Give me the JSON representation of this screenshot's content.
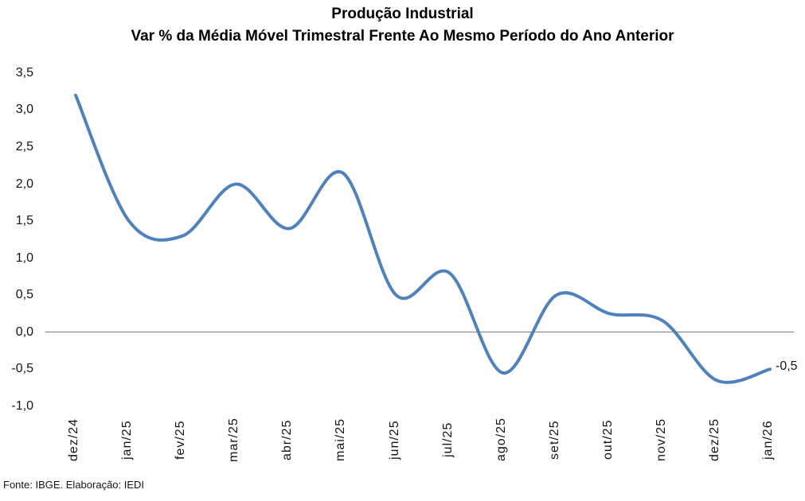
{
  "title": {
    "line1": "Produção Industrial",
    "line2": "Var % da Média Móvel Trimestral Frente Ao Mesmo Período do Ano Anterior"
  },
  "footer": {
    "source": "Fonte: IBGE. Elaboração: IEDI"
  },
  "chart_data": {
    "type": "line",
    "title": "Produção Industrial",
    "subtitle": "Var % da Média Móvel Trimestral Frente Ao Mesmo Período do Ano Anterior",
    "categories": [
      "dez/24",
      "jan/25",
      "fev/25",
      "mar/25",
      "abr/25",
      "mai/25",
      "jun/25",
      "jul/25",
      "ago/25",
      "set/25",
      "out/25",
      "nov/25",
      "dez/25",
      "jan/26"
    ],
    "values": [
      3.2,
      1.5,
      1.3,
      2.0,
      1.4,
      2.15,
      0.5,
      0.8,
      -0.55,
      0.5,
      0.25,
      0.15,
      -0.65,
      -0.5
    ],
    "end_label": "-0,5",
    "y_ticks": [
      {
        "label": "3,5",
        "value": 3.5
      },
      {
        "label": "3,0",
        "value": 3.0
      },
      {
        "label": "2,5",
        "value": 2.5
      },
      {
        "label": "2,0",
        "value": 2.0
      },
      {
        "label": "1,5",
        "value": 1.5
      },
      {
        "label": "1,0",
        "value": 1.0
      },
      {
        "label": "0,5",
        "value": 0.5
      },
      {
        "label": "0,0",
        "value": 0.0
      },
      {
        "label": "-0,5",
        "value": -0.5
      },
      {
        "label": "-1,0",
        "value": -1.0
      }
    ],
    "ylim": [
      -1.0,
      3.5
    ],
    "xlabel": "",
    "ylabel": "",
    "grid": "zero-line-only",
    "legend": "none",
    "smooth": true,
    "line_color": "#4F81BD",
    "zero_line_color": "#7f7f7f"
  }
}
